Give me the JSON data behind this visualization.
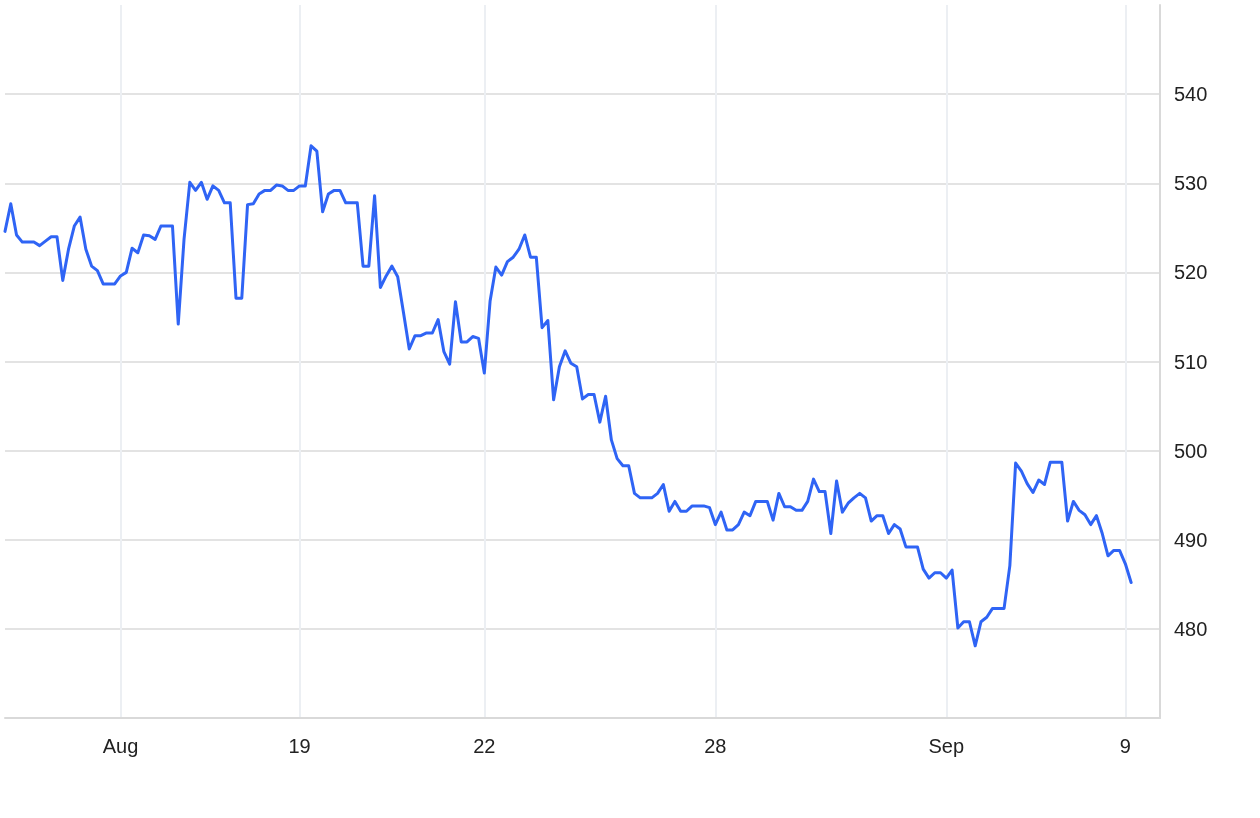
{
  "chart_data": {
    "type": "line",
    "categories": [
      null,
      null,
      null,
      null,
      null,
      null,
      null,
      null,
      null,
      null,
      null,
      null,
      null,
      null,
      null,
      null,
      null,
      null,
      null,
      null,
      "Aug",
      null,
      null,
      null,
      null,
      null,
      null,
      null,
      null,
      null,
      null,
      null,
      null,
      null,
      null,
      null,
      null,
      null,
      null,
      null,
      null,
      null,
      null,
      null,
      null,
      null,
      null,
      null,
      null,
      null,
      null,
      "19",
      null,
      null,
      null,
      null,
      null,
      null,
      null,
      null,
      null,
      null,
      null,
      null,
      null,
      null,
      null,
      null,
      null,
      null,
      null,
      null,
      null,
      null,
      null,
      null,
      null,
      null,
      null,
      null,
      null,
      null,
      null,
      "22",
      null,
      null,
      null,
      null,
      null,
      null,
      null,
      null,
      null,
      null,
      null,
      null,
      null,
      null,
      null,
      null,
      null,
      null,
      null,
      null,
      null,
      null,
      null,
      null,
      null,
      null,
      null,
      null,
      null,
      null,
      null,
      null,
      null,
      null,
      null,
      null,
      null,
      null,
      null,
      "28",
      null,
      null,
      null,
      null,
      null,
      null,
      null,
      null,
      null,
      null,
      null,
      null,
      null,
      null,
      null,
      null,
      null,
      null,
      null,
      null,
      null,
      null,
      null,
      null,
      null,
      null,
      null,
      null,
      null,
      null,
      null,
      null,
      null,
      null,
      null,
      null,
      null,
      null,
      null,
      "Sep",
      null,
      null,
      null,
      null,
      null,
      null,
      null,
      null,
      null,
      null,
      null,
      null,
      null,
      null,
      null,
      null,
      null,
      null,
      null,
      null,
      null,
      null,
      null,
      null,
      null,
      null,
      null,
      null,
      null,
      null,
      "9",
      null,
      null,
      null,
      null,
      null,
      null
    ],
    "series": [
      {
        "color": "#2f64f5",
        "values": [
          524.6,
          527.7,
          524.2,
          523.4,
          523.4,
          523.4,
          523.0,
          523.5,
          524.0,
          524.0,
          519.1,
          522.6,
          525.2,
          526.2,
          522.6,
          520.7,
          520.2,
          518.7,
          518.7,
          518.7,
          519.6,
          520.0,
          522.7,
          522.2,
          524.2,
          524.1,
          523.7,
          525.2,
          525.2,
          525.2,
          514.2,
          523.7,
          530.1,
          529.2,
          530.1,
          528.2,
          529.7,
          529.2,
          527.8,
          527.8,
          517.1,
          517.1,
          527.6,
          527.7,
          528.8,
          529.2,
          529.2,
          529.8,
          529.7,
          529.2,
          529.2,
          529.7,
          529.7,
          534.2,
          533.6,
          526.8,
          528.8,
          529.2,
          529.2,
          527.8,
          527.8,
          527.8,
          520.7,
          520.7,
          528.6,
          518.3,
          519.6,
          520.7,
          519.5,
          515.5,
          511.4,
          512.9,
          512.9,
          513.2,
          513.2,
          514.7,
          511.1,
          509.7,
          516.7,
          512.2,
          512.2,
          512.8,
          512.6,
          508.7,
          516.8,
          520.6,
          519.7,
          521.2,
          521.7,
          522.6,
          524.2,
          521.7,
          521.7,
          513.8,
          514.6,
          505.7,
          509.4,
          511.2,
          509.8,
          509.4,
          505.8,
          506.3,
          506.3,
          503.2,
          506.1,
          501.2,
          499.1,
          498.3,
          498.3,
          495.2,
          494.7,
          494.7,
          494.7,
          495.2,
          496.2,
          493.2,
          494.3,
          493.2,
          493.2,
          493.8,
          493.8,
          493.8,
          493.6,
          491.7,
          493.1,
          491.1,
          491.1,
          491.7,
          493.1,
          492.7,
          494.3,
          494.3,
          494.3,
          492.2,
          495.2,
          493.7,
          493.7,
          493.3,
          493.3,
          494.3,
          496.8,
          495.4,
          495.4,
          490.7,
          496.6,
          493.1,
          494.1,
          494.7,
          495.2,
          494.7,
          492.1,
          492.7,
          492.7,
          490.7,
          491.7,
          491.2,
          489.2,
          489.2,
          489.2,
          486.7,
          485.7,
          486.3,
          486.3,
          485.7,
          486.6,
          480.1,
          480.8,
          480.8,
          478.1,
          480.8,
          481.3,
          482.3,
          482.3,
          482.3,
          487.1,
          498.6,
          497.7,
          496.3,
          495.3,
          496.7,
          496.2,
          498.7,
          498.7,
          498.7,
          492.1,
          494.3,
          493.3,
          492.8,
          491.7,
          492.7,
          490.7,
          488.2,
          488.8,
          488.8,
          487.3,
          485.2,
          null,
          null,
          null,
          null,
          null
        ]
      }
    ],
    "ylim": [
      470,
      550
    ],
    "yticks": [
      480,
      490,
      500,
      510,
      520,
      530,
      540
    ],
    "grid": true,
    "marker": "none",
    "line_style": "solid"
  }
}
